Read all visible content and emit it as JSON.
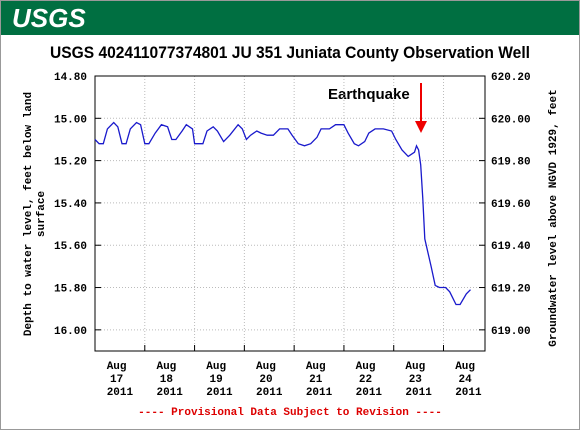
{
  "header": {
    "logo": "USGS"
  },
  "chart_data": {
    "type": "line",
    "title": "USGS 402411077374801 JU   351  Juniata County Observation Well",
    "ylabel": [
      "Depth to water level, feet below land",
      "surface"
    ],
    "y2label": "Groundwater level above NGVD 1929, feet",
    "annotation": "Earthquake",
    "footer": "---- Provisional Data Subject to Revision ----",
    "color": "#1a1acc",
    "x": [
      "2011-08-17T00:00",
      "2011-08-17T02:00",
      "2011-08-17T04:00",
      "2011-08-17T06:00",
      "2011-08-17T09:00",
      "2011-08-17T11:00",
      "2011-08-17T13:00",
      "2011-08-17T15:00",
      "2011-08-17T17:00",
      "2011-08-17T20:00",
      "2011-08-17T22:00",
      "2011-08-18T00:00",
      "2011-08-18T02:00",
      "2011-08-18T05:00",
      "2011-08-18T08:00",
      "2011-08-18T11:00",
      "2011-08-18T13:00",
      "2011-08-18T15:00",
      "2011-08-18T18:00",
      "2011-08-18T20:00",
      "2011-08-18T23:00",
      "2011-08-19T00:00",
      "2011-08-19T04:00",
      "2011-08-19T06:00",
      "2011-08-19T09:00",
      "2011-08-19T11:00",
      "2011-08-19T14:00",
      "2011-08-19T17:00",
      "2011-08-19T21:00",
      "2011-08-19T23:00",
      "2011-08-20T01:00",
      "2011-08-20T03:00",
      "2011-08-20T06:00",
      "2011-08-20T08:00",
      "2011-08-20T11:00",
      "2011-08-20T14:00",
      "2011-08-20T17:00",
      "2011-08-20T21:00",
      "2011-08-20T23:00",
      "2011-08-21T02:00",
      "2011-08-21T05:00",
      "2011-08-21T08:00",
      "2011-08-21T11:00",
      "2011-08-21T13:00",
      "2011-08-21T17:00",
      "2011-08-21T20:00",
      "2011-08-22T00:00",
      "2011-08-22T02:00",
      "2011-08-22T05:00",
      "2011-08-22T07:00",
      "2011-08-22T10:00",
      "2011-08-22T12:00",
      "2011-08-22T15:00",
      "2011-08-22T19:00",
      "2011-08-22T23:00",
      "2011-08-23T01:00",
      "2011-08-23T04:00",
      "2011-08-23T07:00",
      "2011-08-23T10:00",
      "2011-08-23T11:00",
      "2011-08-23T12:00",
      "2011-08-23T13:00",
      "2011-08-23T14:00",
      "2011-08-23T15:00",
      "2011-08-23T18:00",
      "2011-08-23T20:00",
      "2011-08-23T22:00",
      "2011-08-24T01:00",
      "2011-08-24T03:00",
      "2011-08-24T06:00",
      "2011-08-24T08:00",
      "2011-08-24T11:00",
      "2011-08-24T13:00"
    ],
    "values": [
      15.1,
      15.12,
      15.12,
      15.05,
      15.02,
      15.04,
      15.12,
      15.12,
      15.05,
      15.02,
      15.03,
      15.12,
      15.12,
      15.07,
      15.03,
      15.04,
      15.1,
      15.1,
      15.06,
      15.03,
      15.05,
      15.12,
      15.12,
      15.06,
      15.04,
      15.06,
      15.11,
      15.08,
      15.03,
      15.05,
      15.1,
      15.08,
      15.06,
      15.07,
      15.08,
      15.08,
      15.05,
      15.05,
      15.08,
      15.12,
      15.13,
      15.12,
      15.09,
      15.05,
      15.05,
      15.03,
      15.03,
      15.07,
      15.12,
      15.13,
      15.11,
      15.07,
      15.05,
      15.05,
      15.06,
      15.1,
      15.15,
      15.18,
      15.16,
      15.13,
      15.15,
      15.22,
      15.38,
      15.57,
      15.7,
      15.79,
      15.8,
      15.8,
      15.82,
      15.88,
      15.88,
      15.83,
      15.81
    ],
    "xlim": [
      "2011-08-17T00:00",
      "2011-08-24T20:00"
    ],
    "xticks": [
      {
        "value": "2011-08-17T12:00",
        "label": "Aug 17 2011"
      },
      {
        "value": "2011-08-18T12:00",
        "label": "Aug 18 2011"
      },
      {
        "value": "2011-08-19T12:00",
        "label": "Aug 19 2011"
      },
      {
        "value": "2011-08-20T12:00",
        "label": "Aug 20 2011"
      },
      {
        "value": "2011-08-21T12:00",
        "label": "Aug 21 2011"
      },
      {
        "value": "2011-08-22T12:00",
        "label": "Aug 22 2011"
      },
      {
        "value": "2011-08-23T12:00",
        "label": "Aug 23 2011"
      },
      {
        "value": "2011-08-24T12:00",
        "label": "Aug 24 2011"
      }
    ],
    "xgrid": [
      "2011-08-18T00:00",
      "2011-08-19T00:00",
      "2011-08-20T00:00",
      "2011-08-21T00:00",
      "2011-08-22T00:00",
      "2011-08-23T00:00",
      "2011-08-24T00:00"
    ],
    "ylim": [
      14.8,
      16.1
    ],
    "yticks": [
      {
        "value": 14.8,
        "label": "14.80"
      },
      {
        "value": 15.0,
        "label": "15.00"
      },
      {
        "value": 15.2,
        "label": "15.20"
      },
      {
        "value": 15.4,
        "label": "15.40"
      },
      {
        "value": 15.6,
        "label": "15.60"
      },
      {
        "value": 15.8,
        "label": "15.80"
      },
      {
        "value": 16.0,
        "label": "16.00"
      }
    ],
    "y2lim": [
      620.2,
      618.9
    ],
    "y2ticks": [
      {
        "value": 620.2,
        "label": "620.20"
      },
      {
        "value": 620.0,
        "label": "620.00"
      },
      {
        "value": 619.8,
        "label": "619.80"
      },
      {
        "value": 619.6,
        "label": "619.60"
      },
      {
        "value": 619.4,
        "label": "619.40"
      },
      {
        "value": 619.2,
        "label": "619.20"
      },
      {
        "value": 619.0,
        "label": "619.00"
      }
    ],
    "grid": true
  }
}
